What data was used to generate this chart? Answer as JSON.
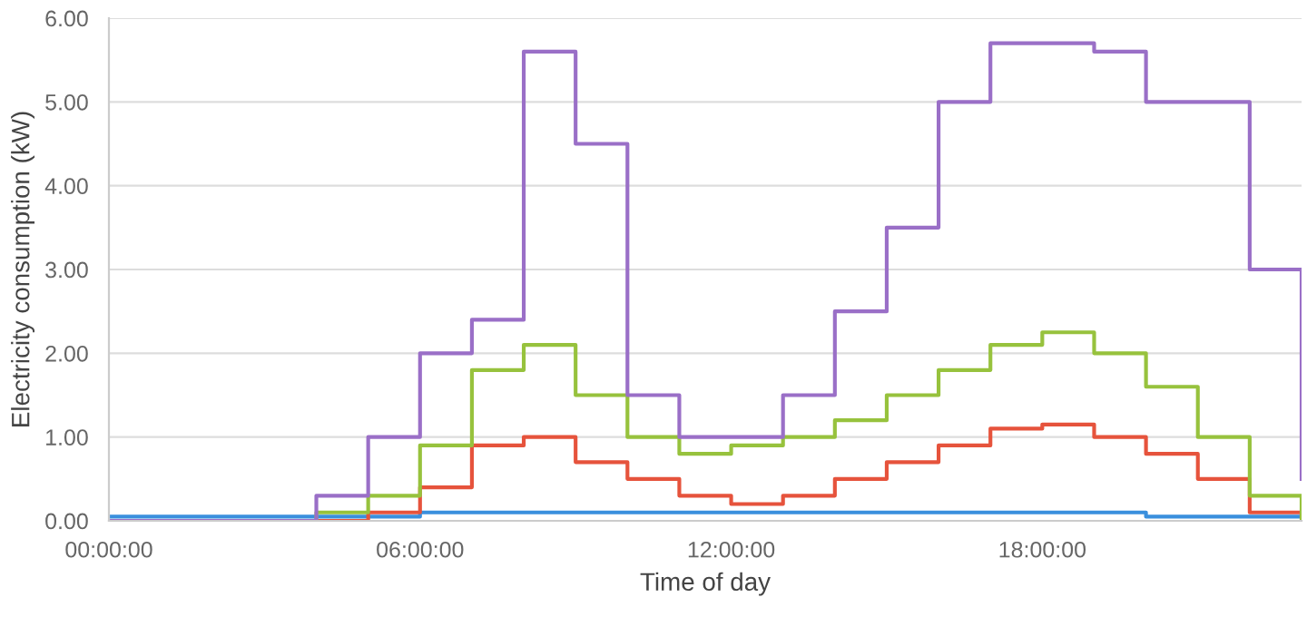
{
  "chart_data": {
    "type": "step",
    "xlabel": "Time of day",
    "ylabel": "Electricity consumption (kW)",
    "x": [
      0,
      1,
      2,
      3,
      4,
      5,
      6,
      7,
      8,
      9,
      10,
      11,
      12,
      13,
      14,
      15,
      16,
      17,
      18,
      19,
      20,
      21,
      22,
      23
    ],
    "series": [
      {
        "color": "#3a8fdd",
        "values": [
          0.05,
          0.05,
          0.05,
          0.05,
          0.05,
          0.05,
          0.1,
          0.1,
          0.1,
          0.1,
          0.1,
          0.1,
          0.1,
          0.1,
          0.1,
          0.1,
          0.1,
          0.1,
          0.1,
          0.1,
          0.05,
          0.05,
          0.05,
          0.05
        ]
      },
      {
        "color": "#e6533c",
        "values": [
          null,
          null,
          null,
          0,
          0,
          0.1,
          0.4,
          0.9,
          1.0,
          0.7,
          0.5,
          0.3,
          0.2,
          0.3,
          0.5,
          0.7,
          0.9,
          1.1,
          1.15,
          1.0,
          0.8,
          0.5,
          0.1,
          0.05
        ]
      },
      {
        "color": "#97c23d",
        "values": [
          null,
          null,
          null,
          0,
          0.1,
          0.3,
          0.9,
          1.8,
          2.1,
          1.5,
          1.0,
          0.8,
          0.9,
          1.0,
          1.2,
          1.5,
          1.8,
          2.1,
          2.25,
          2.0,
          1.6,
          1.0,
          0.3,
          0.0
        ]
      },
      {
        "color": "#9a6fc7",
        "values": [
          0,
          0,
          0,
          0,
          0.3,
          1.0,
          2.0,
          2.4,
          5.6,
          4.5,
          1.5,
          1.0,
          1.0,
          1.5,
          2.5,
          3.5,
          5.0,
          5.7,
          5.7,
          5.6,
          5.0,
          5.0,
          3.0,
          0.5
        ]
      }
    ],
    "xlim": [
      0,
      23
    ],
    "ylim": [
      0,
      6
    ],
    "xticks": [
      {
        "value": 0,
        "label": "00:00:00"
      },
      {
        "value": 6,
        "label": "06:00:00"
      },
      {
        "value": 12,
        "label": "12:00:00"
      },
      {
        "value": 18,
        "label": "18:00:00"
      }
    ],
    "yticks": [
      {
        "value": 0,
        "label": "0.00"
      },
      {
        "value": 1,
        "label": "1.00"
      },
      {
        "value": 2,
        "label": "2.00"
      },
      {
        "value": 3,
        "label": "3.00"
      },
      {
        "value": 4,
        "label": "4.00"
      },
      {
        "value": 5,
        "label": "5.00"
      },
      {
        "value": 6,
        "label": "6.00"
      }
    ],
    "grid": "y",
    "marker": "none",
    "line_style": "solid"
  }
}
